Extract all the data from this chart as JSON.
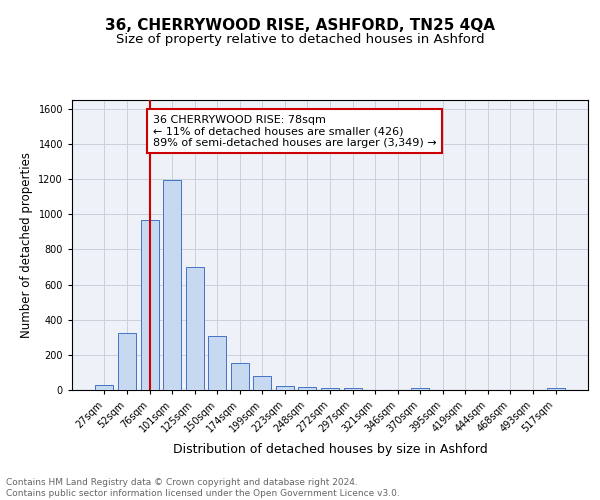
{
  "title": "36, CHERRYWOOD RISE, ASHFORD, TN25 4QA",
  "subtitle": "Size of property relative to detached houses in Ashford",
  "xlabel": "Distribution of detached houses by size in Ashford",
  "ylabel": "Number of detached properties",
  "categories": [
    "27sqm",
    "52sqm",
    "76sqm",
    "101sqm",
    "125sqm",
    "150sqm",
    "174sqm",
    "199sqm",
    "223sqm",
    "248sqm",
    "272sqm",
    "297sqm",
    "321sqm",
    "346sqm",
    "370sqm",
    "395sqm",
    "419sqm",
    "444sqm",
    "468sqm",
    "493sqm",
    "517sqm"
  ],
  "values": [
    28,
    325,
    968,
    1195,
    700,
    305,
    155,
    78,
    25,
    16,
    14,
    13,
    0,
    0,
    13,
    0,
    0,
    0,
    0,
    0,
    13
  ],
  "bar_color": "#c7d9f0",
  "bar_edge_color": "#4472c4",
  "bar_width": 0.8,
  "vline_x_index": 2,
  "vline_color": "#cc0000",
  "annotation_text": "36 CHERRYWOOD RISE: 78sqm\n← 11% of detached houses are smaller (426)\n89% of semi-detached houses are larger (3,349) →",
  "annotation_box_color": "#ffffff",
  "annotation_box_edge_color": "#cc0000",
  "ylim": [
    0,
    1650
  ],
  "yticks": [
    0,
    200,
    400,
    600,
    800,
    1000,
    1200,
    1400,
    1600
  ],
  "grid_color": "#c8d0dc",
  "background_color": "#eef2f8",
  "footer_line1": "Contains HM Land Registry data © Crown copyright and database right 2024.",
  "footer_line2": "Contains public sector information licensed under the Open Government Licence v3.0.",
  "title_fontsize": 11,
  "subtitle_fontsize": 9.5,
  "xlabel_fontsize": 9,
  "ylabel_fontsize": 8.5,
  "tick_fontsize": 7,
  "annotation_fontsize": 8,
  "footer_fontsize": 6.5
}
